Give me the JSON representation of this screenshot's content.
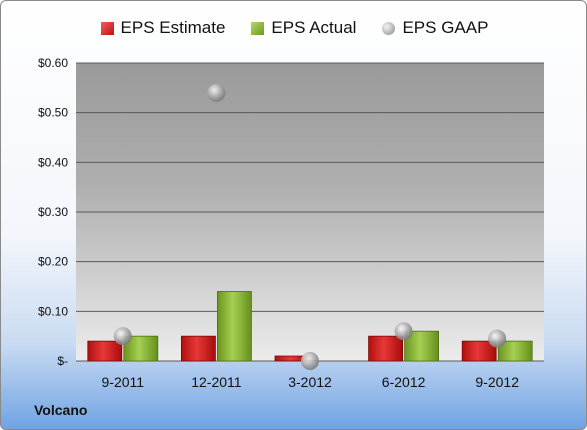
{
  "legend": {
    "estimate": "EPS Estimate",
    "actual": "EPS Actual",
    "gaap": "EPS GAAP"
  },
  "brand": "Volcano",
  "colors": {
    "estimate": "#d42020",
    "actual": "#8cbc3a",
    "gaap": "#b0b0b0"
  },
  "chart_data": {
    "type": "bar",
    "categories": [
      "9-2011",
      "12-2011",
      "3-2012",
      "6-2012",
      "9-2012"
    ],
    "series": [
      {
        "name": "EPS Estimate",
        "values": [
          0.04,
          0.05,
          0.01,
          0.05,
          0.04
        ]
      },
      {
        "name": "EPS Actual",
        "values": [
          0.05,
          0.14,
          0.0,
          0.06,
          0.04
        ]
      },
      {
        "name": "EPS GAAP",
        "marker": "sphere",
        "values": [
          0.05,
          0.54,
          0.0,
          0.06,
          0.045
        ]
      }
    ],
    "yticks": [
      "$-",
      "$0.10",
      "$0.20",
      "$0.30",
      "$0.40",
      "$0.50",
      "$0.60"
    ],
    "ylim": [
      0,
      0.6
    ],
    "legend_position": "top",
    "grid": true
  }
}
